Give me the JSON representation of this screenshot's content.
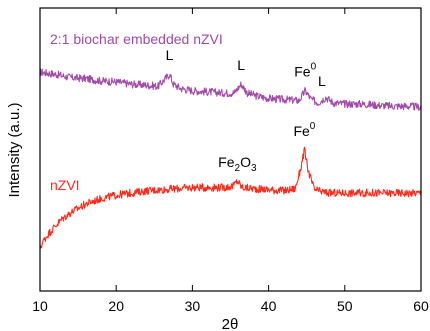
{
  "chart_data": {
    "type": "line",
    "xlabel": "2θ",
    "ylabel": "Intensity (a.u.)",
    "xlim": [
      10,
      60
    ],
    "x_ticks": [
      "10",
      "20",
      "30",
      "40",
      "50",
      "60"
    ],
    "y_ticks_labeled": false,
    "grid": false,
    "legend": "none (series labeled inline, top-left of each trace)",
    "series": [
      {
        "name": "2:1 biochar embedded nZVI",
        "color": "#a24aa8",
        "label_color": "#a24aa8",
        "x": [
          10,
          12,
          14,
          16,
          18,
          20,
          22,
          24,
          25.5,
          26.6,
          27.0,
          27.5,
          28.5,
          30,
          32,
          34,
          35.5,
          36.4,
          37.2,
          38.5,
          40,
          42,
          44,
          44.8,
          45.6,
          46.5,
          47.5,
          48.5,
          50,
          52,
          54,
          56,
          58,
          60
        ],
        "y": [
          0.8,
          0.79,
          0.775,
          0.77,
          0.76,
          0.755,
          0.745,
          0.74,
          0.735,
          0.775,
          0.79,
          0.745,
          0.725,
          0.715,
          0.71,
          0.705,
          0.705,
          0.745,
          0.705,
          0.69,
          0.68,
          0.675,
          0.67,
          0.715,
          0.675,
          0.66,
          0.685,
          0.66,
          0.655,
          0.655,
          0.65,
          0.645,
          0.645,
          0.64
        ]
      },
      {
        "name": "nZVI",
        "color": "#ff2a1a",
        "label_color": "#ff2a1a",
        "x": [
          10,
          10.5,
          11,
          12,
          13,
          14,
          15,
          16,
          18,
          20,
          22,
          24,
          26,
          28,
          30,
          32,
          34,
          35.3,
          35.9,
          36.5,
          38,
          40,
          42,
          43.5,
          44.2,
          44.7,
          45.2,
          46,
          47,
          48,
          50,
          52,
          54,
          56,
          58,
          60
        ],
        "y": [
          0.0,
          0.035,
          0.06,
          0.1,
          0.135,
          0.16,
          0.18,
          0.2,
          0.225,
          0.24,
          0.25,
          0.26,
          0.265,
          0.27,
          0.275,
          0.275,
          0.275,
          0.28,
          0.305,
          0.275,
          0.27,
          0.265,
          0.26,
          0.27,
          0.36,
          0.445,
          0.35,
          0.265,
          0.255,
          0.25,
          0.25,
          0.25,
          0.25,
          0.25,
          0.25,
          0.25
        ]
      }
    ],
    "annotations": [
      {
        "text": "L",
        "x": 27.0,
        "series": "2:1 biochar embedded nZVI"
      },
      {
        "text": "L",
        "x": 36.4,
        "series": "2:1 biochar embedded nZVI"
      },
      {
        "text": "Fe",
        "sup": "0",
        "x": 44.8,
        "series": "2:1 biochar embedded nZVI"
      },
      {
        "text": "L",
        "x": 47.0,
        "series": "2:1 biochar embedded nZVI"
      },
      {
        "text": "Fe",
        "sub": "2",
        "text2": "O",
        "sub2": "3",
        "x": 35.9,
        "series": "nZVI"
      },
      {
        "text": "Fe",
        "sup": "0",
        "x": 44.7,
        "series": "nZVI"
      }
    ]
  }
}
